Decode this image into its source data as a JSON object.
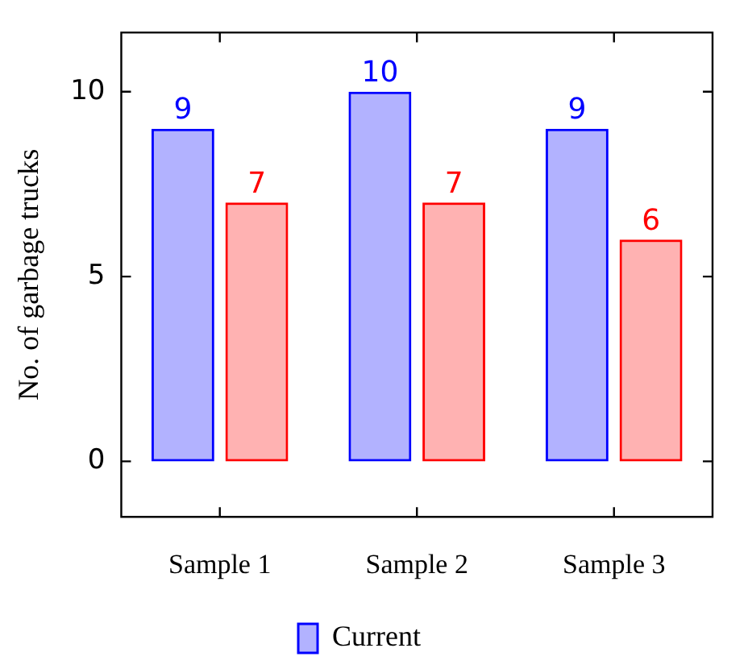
{
  "chart_data": {
    "type": "bar",
    "ylabel": "No. of garbage trucks",
    "categories": [
      "Sample 1",
      "Sample 2",
      "Sample 3"
    ],
    "series": [
      {
        "name": "Current",
        "color": "#0000ff",
        "values": [
          9,
          10,
          9
        ]
      },
      {
        "color": "#ff0000",
        "values": [
          7,
          7,
          6
        ]
      }
    ],
    "ylim": [
      -1.5,
      11.6
    ],
    "yticks": [
      0,
      5,
      10
    ],
    "grid": false,
    "legend": "bottom",
    "data_labels": true
  }
}
